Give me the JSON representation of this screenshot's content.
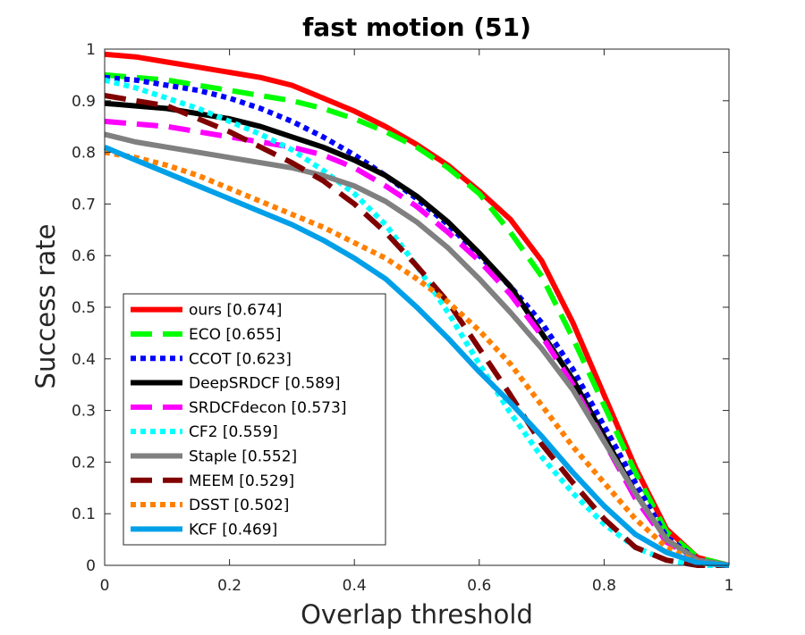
{
  "chart_data": {
    "type": "line",
    "title": "fast motion (51)",
    "xlabel": "Overlap threshold",
    "ylabel": "Success rate",
    "xlim": [
      0,
      1
    ],
    "ylim": [
      0,
      1
    ],
    "xticks": [
      "0",
      "0.2",
      "0.4",
      "0.6",
      "0.8",
      "1"
    ],
    "yticks": [
      "0",
      "0.1",
      "0.2",
      "0.3",
      "0.4",
      "0.5",
      "0.6",
      "0.7",
      "0.8",
      "0.9",
      "1"
    ],
    "x": [
      0,
      0.05,
      0.1,
      0.15,
      0.2,
      0.25,
      0.3,
      0.35,
      0.4,
      0.45,
      0.5,
      0.55,
      0.6,
      0.65,
      0.7,
      0.75,
      0.8,
      0.85,
      0.9,
      0.95,
      1.0
    ],
    "grid": false,
    "legend_position": "bottom-left",
    "series": [
      {
        "name": "ours [0.674]",
        "color": "#ff0000",
        "style": "solid",
        "values": [
          0.99,
          0.985,
          0.975,
          0.965,
          0.955,
          0.945,
          0.93,
          0.905,
          0.88,
          0.85,
          0.815,
          0.775,
          0.725,
          0.67,
          0.59,
          0.47,
          0.33,
          0.19,
          0.07,
          0.015,
          0.0
        ]
      },
      {
        "name": "ECO [0.655]",
        "color": "#00ff00",
        "style": "dash",
        "values": [
          0.95,
          0.945,
          0.94,
          0.93,
          0.92,
          0.91,
          0.9,
          0.885,
          0.865,
          0.84,
          0.81,
          0.77,
          0.72,
          0.645,
          0.56,
          0.44,
          0.31,
          0.18,
          0.065,
          0.015,
          0.0
        ]
      },
      {
        "name": "CCOT [0.623]",
        "color": "#0000ff",
        "style": "dot",
        "values": [
          0.945,
          0.94,
          0.93,
          0.92,
          0.905,
          0.885,
          0.86,
          0.83,
          0.795,
          0.755,
          0.71,
          0.66,
          0.6,
          0.54,
          0.47,
          0.38,
          0.27,
          0.16,
          0.055,
          0.01,
          0.0
        ]
      },
      {
        "name": "DeepSRDCF [0.589]",
        "color": "#000000",
        "style": "solid",
        "values": [
          0.895,
          0.89,
          0.885,
          0.875,
          0.865,
          0.85,
          0.83,
          0.81,
          0.785,
          0.755,
          0.715,
          0.665,
          0.605,
          0.54,
          0.45,
          0.36,
          0.25,
          0.14,
          0.05,
          0.01,
          0.0
        ]
      },
      {
        "name": "SRDCFdecon [0.573]",
        "color": "#ff00ff",
        "style": "dash",
        "values": [
          0.86,
          0.855,
          0.85,
          0.84,
          0.83,
          0.82,
          0.81,
          0.795,
          0.77,
          0.735,
          0.695,
          0.645,
          0.59,
          0.525,
          0.445,
          0.35,
          0.24,
          0.13,
          0.045,
          0.01,
          0.0
        ]
      },
      {
        "name": "CF2 [0.559]",
        "color": "#00ffff",
        "style": "dot",
        "values": [
          0.94,
          0.925,
          0.905,
          0.885,
          0.86,
          0.835,
          0.805,
          0.765,
          0.72,
          0.66,
          0.58,
          0.49,
          0.39,
          0.295,
          0.21,
          0.14,
          0.08,
          0.035,
          0.01,
          0.0,
          0.0
        ]
      },
      {
        "name": "Staple [0.552]",
        "color": "#808080",
        "style": "solid",
        "values": [
          0.835,
          0.82,
          0.81,
          0.8,
          0.79,
          0.78,
          0.77,
          0.755,
          0.735,
          0.705,
          0.665,
          0.615,
          0.555,
          0.49,
          0.42,
          0.34,
          0.24,
          0.14,
          0.05,
          0.01,
          0.0
        ]
      },
      {
        "name": "MEEM [0.529]",
        "color": "#800000",
        "style": "dash",
        "values": [
          0.91,
          0.9,
          0.89,
          0.865,
          0.84,
          0.81,
          0.78,
          0.745,
          0.7,
          0.645,
          0.58,
          0.51,
          0.42,
          0.33,
          0.235,
          0.16,
          0.09,
          0.035,
          0.01,
          0.0,
          0.0
        ]
      },
      {
        "name": "DSST [0.502]",
        "color": "#ff8000",
        "style": "dot",
        "values": [
          0.8,
          0.79,
          0.775,
          0.755,
          0.73,
          0.705,
          0.68,
          0.655,
          0.625,
          0.595,
          0.555,
          0.51,
          0.455,
          0.39,
          0.31,
          0.23,
          0.16,
          0.09,
          0.035,
          0.005,
          0.0
        ]
      },
      {
        "name": "KCF [0.469]",
        "color": "#00a0e8",
        "style": "solid",
        "values": [
          0.81,
          0.785,
          0.76,
          0.735,
          0.71,
          0.685,
          0.66,
          0.63,
          0.595,
          0.555,
          0.5,
          0.44,
          0.375,
          0.315,
          0.25,
          0.18,
          0.115,
          0.06,
          0.025,
          0.005,
          0.0
        ]
      }
    ]
  }
}
